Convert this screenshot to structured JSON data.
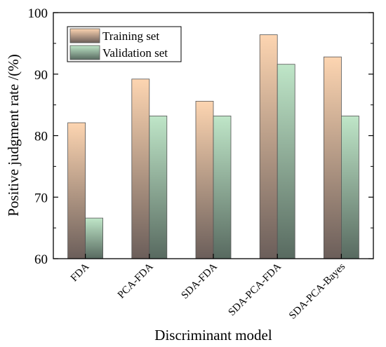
{
  "chart_data": {
    "type": "bar",
    "title": "",
    "xlabel": "Discriminant model",
    "ylabel": "Positive judgment rate /(%)",
    "ylim": [
      60,
      100
    ],
    "yticks": [
      "60",
      "70",
      "80",
      "90",
      "100"
    ],
    "categories": [
      "FDA",
      "PCA-FDA",
      "SDA-FDA",
      "SDA-PCA-FDA",
      "SDA-PCA-Bayes"
    ],
    "series": [
      {
        "name": "Training set",
        "values": [
          82.1,
          89.2,
          85.6,
          96.4,
          92.8
        ],
        "color_top": "#fdd5b1",
        "color_bottom": "#6b5e5a"
      },
      {
        "name": "Validation set",
        "values": [
          66.6,
          83.2,
          83.2,
          91.6,
          83.2
        ],
        "color_top": "#bfe6c8",
        "color_bottom": "#586a60"
      }
    ],
    "legend": {
      "position": "top-left"
    },
    "grid": false
  }
}
